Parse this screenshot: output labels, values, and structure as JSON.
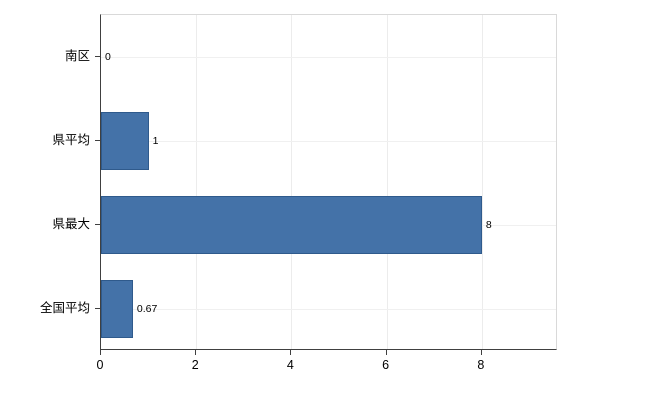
{
  "chart_data": {
    "type": "bar",
    "orientation": "horizontal",
    "title": "",
    "xlabel": "",
    "ylabel": "",
    "categories": [
      "南区",
      "県平均",
      "県最大",
      "全国平均"
    ],
    "values": [
      0,
      1,
      8,
      0.67
    ],
    "data_labels": [
      "0",
      "1",
      "8",
      "0.67"
    ],
    "x_ticks": [
      0,
      2,
      4,
      6,
      8
    ],
    "x_tick_labels": [
      "0",
      "2",
      "4",
      "6",
      "8"
    ],
    "xlim": [
      0,
      9.6
    ],
    "grid": "light",
    "legend": "none",
    "bar_color": "#4472a8",
    "bar_border_color": "#2f5a8c",
    "axis_color": "#404040",
    "plot_border_color": "#d9d9d9",
    "background_color": "#ffffff"
  }
}
